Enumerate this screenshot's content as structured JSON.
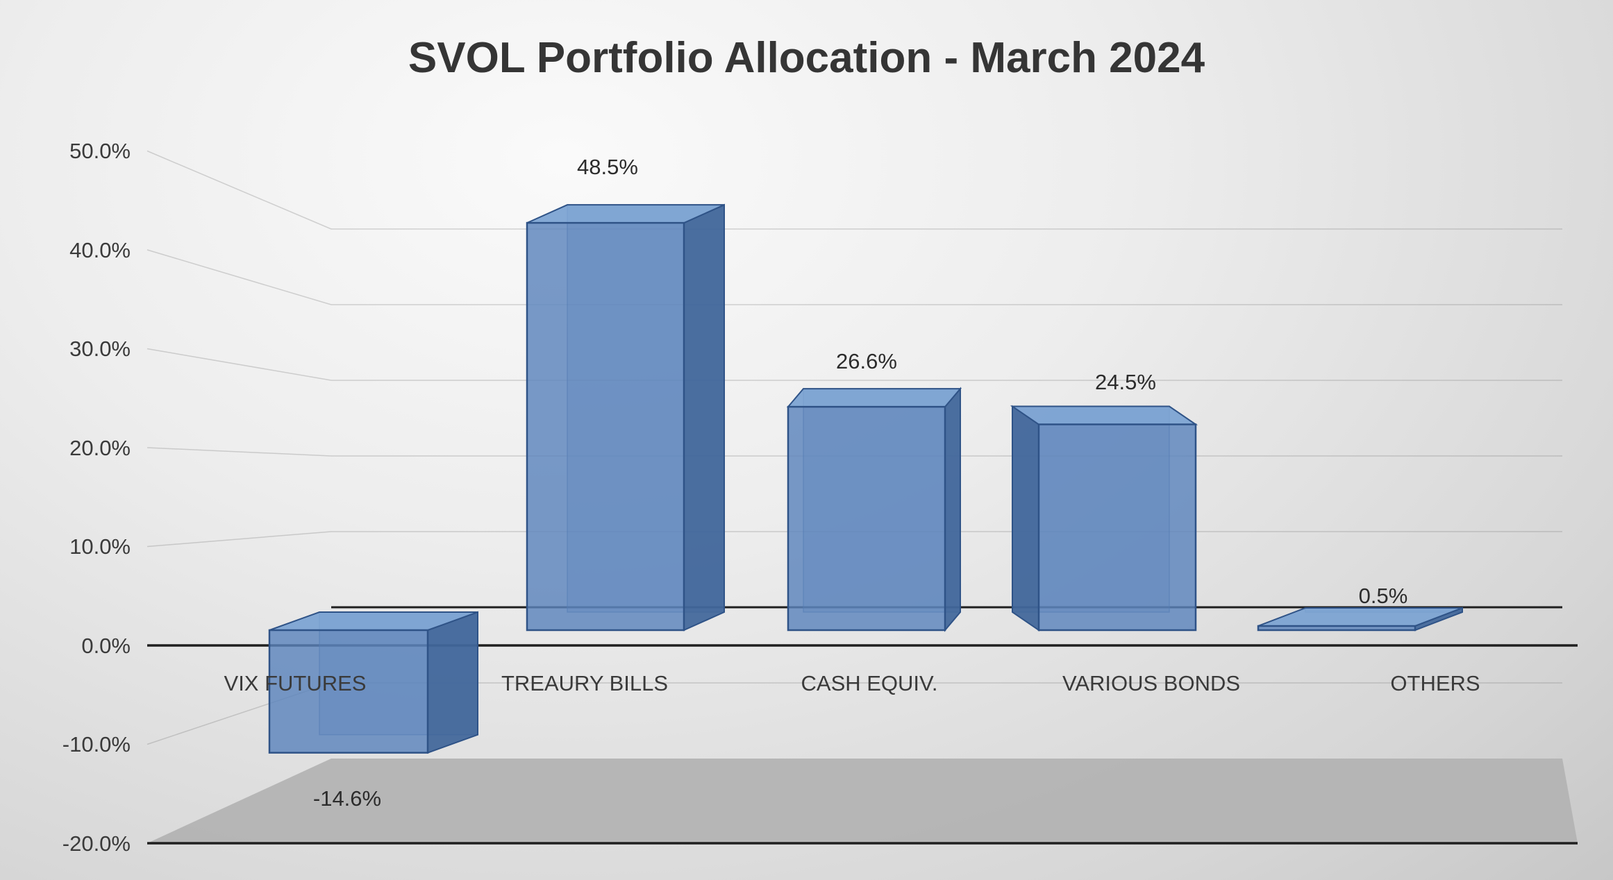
{
  "chart_data": {
    "type": "bar",
    "style": "3d-column",
    "title": "SVOL Portfolio Allocation - March 2024",
    "categories": [
      "VIX FUTURES",
      "TREAURY BILLS",
      "CASH EQUIV.",
      "VARIOUS BONDS",
      "OTHERS"
    ],
    "values": [
      -14.6,
      48.5,
      26.6,
      24.5,
      0.5
    ],
    "value_labels": [
      "-14.6%",
      "48.5%",
      "26.6%",
      "24.5%",
      "0.5%"
    ],
    "y_axis": {
      "min": -20,
      "max": 50,
      "step": 10,
      "tick_labels": [
        "50.0%",
        "40.0%",
        "30.0%",
        "20.0%",
        "10.0%",
        "0.0%",
        "-10.0%",
        "-20.0%"
      ]
    },
    "grid": true,
    "legend": false,
    "colors": {
      "bar_fill": "#5b84bc",
      "bar_side": "#41669a",
      "bar_top": "#7ba2d2",
      "bar_edge": "#2f5387",
      "floor": "#b3b3b3",
      "axis_line": "#1f1f1f",
      "background": "#e5e5e5",
      "text": "#3a3a3a"
    }
  }
}
